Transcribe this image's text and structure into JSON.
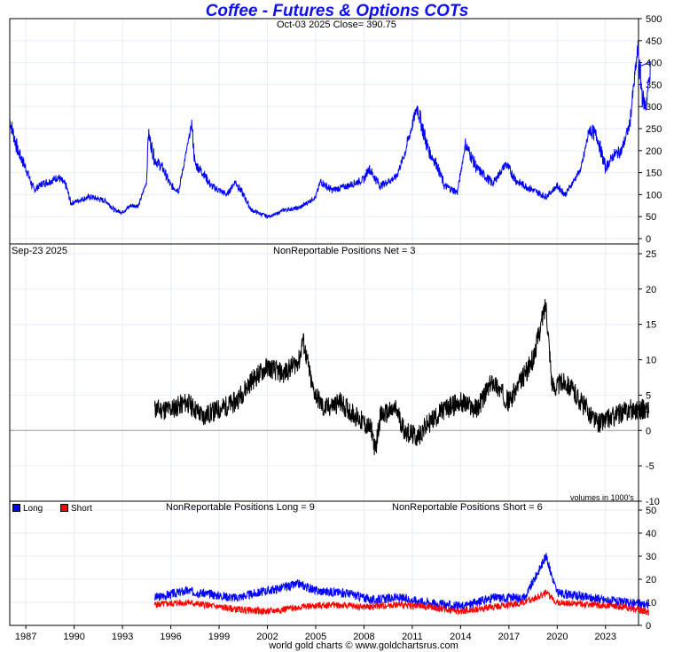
{
  "title": "Coffee - Futures & Options COTs",
  "footer": "world gold charts © www.goldchartsrus.com",
  "chart_data": [
    {
      "type": "line",
      "name": "price",
      "subtitle": "Oct-03  2025   Close= 390.75",
      "ylim": [
        0,
        500
      ],
      "yticks": [
        0,
        50,
        100,
        150,
        200,
        250,
        300,
        350,
        400,
        450,
        500
      ],
      "color": "#0000ff",
      "points": [
        [
          1986,
          270
        ],
        [
          1986.5,
          200
        ],
        [
          1987,
          160
        ],
        [
          1987.5,
          110
        ],
        [
          1988,
          125
        ],
        [
          1988.5,
          130
        ],
        [
          1989,
          140
        ],
        [
          1989.5,
          120
        ],
        [
          1989.8,
          80
        ],
        [
          1990.5,
          90
        ],
        [
          1991,
          95
        ],
        [
          1992,
          85
        ],
        [
          1992.5,
          65
        ],
        [
          1993,
          60
        ],
        [
          1993.5,
          75
        ],
        [
          1994,
          75
        ],
        [
          1994.5,
          130
        ],
        [
          1994.6,
          240
        ],
        [
          1995,
          180
        ],
        [
          1995.5,
          160
        ],
        [
          1996,
          120
        ],
        [
          1996.5,
          110
        ],
        [
          1997.3,
          260
        ],
        [
          1997.5,
          170
        ],
        [
          1998,
          150
        ],
        [
          1998.5,
          120
        ],
        [
          1999,
          110
        ],
        [
          1999.5,
          100
        ],
        [
          2000,
          130
        ],
        [
          2000.5,
          100
        ],
        [
          2001,
          65
        ],
        [
          2002,
          50
        ],
        [
          2002.5,
          55
        ],
        [
          2003,
          65
        ],
        [
          2004,
          70
        ],
        [
          2005,
          95
        ],
        [
          2005.3,
          130
        ],
        [
          2006,
          110
        ],
        [
          2007,
          120
        ],
        [
          2008,
          135
        ],
        [
          2008.3,
          160
        ],
        [
          2009,
          120
        ],
        [
          2010,
          140
        ],
        [
          2010.5,
          190
        ],
        [
          2011.3,
          300
        ],
        [
          2012,
          200
        ],
        [
          2012.5,
          170
        ],
        [
          2013,
          120
        ],
        [
          2013.8,
          105
        ],
        [
          2014.3,
          215
        ],
        [
          2015,
          160
        ],
        [
          2016,
          125
        ],
        [
          2016.8,
          170
        ],
        [
          2017.5,
          130
        ],
        [
          2018.5,
          110
        ],
        [
          2019.3,
          95
        ],
        [
          2020,
          120
        ],
        [
          2020.5,
          100
        ],
        [
          2021.5,
          160
        ],
        [
          2022,
          250
        ],
        [
          2022.5,
          230
        ],
        [
          2023,
          160
        ],
        [
          2023.5,
          190
        ],
        [
          2024,
          200
        ],
        [
          2024.5,
          260
        ],
        [
          2025,
          430
        ],
        [
          2025.3,
          320
        ],
        [
          2025.5,
          300
        ],
        [
          2025.8,
          390
        ]
      ]
    },
    {
      "type": "line",
      "name": "net",
      "date_label": "Sep-23  2025",
      "subtitle": "NonReportable Positions Net = 3",
      "note": "volumes in 1000's",
      "ylim": [
        -10,
        25
      ],
      "yticks": [
        -10,
        -5,
        0,
        5,
        10,
        15,
        20,
        25
      ],
      "color": "#000000",
      "points": [
        [
          1995,
          3
        ],
        [
          1996,
          3
        ],
        [
          1997,
          4
        ],
        [
          1998,
          2
        ],
        [
          1999,
          3
        ],
        [
          2000,
          4
        ],
        [
          2001,
          7
        ],
        [
          2002,
          9
        ],
        [
          2003,
          8
        ],
        [
          2004,
          10
        ],
        [
          2004.2,
          13
        ],
        [
          2004.8,
          6
        ],
        [
          2005.5,
          3
        ],
        [
          2006.5,
          4
        ],
        [
          2007.5,
          2
        ],
        [
          2008.5,
          0
        ],
        [
          2008.7,
          -3
        ],
        [
          2009,
          2
        ],
        [
          2010,
          3
        ],
        [
          2010.5,
          0
        ],
        [
          2011.3,
          -1
        ],
        [
          2012,
          1
        ],
        [
          2013,
          3
        ],
        [
          2014,
          4
        ],
        [
          2015,
          3
        ],
        [
          2016,
          7
        ],
        [
          2017,
          4
        ],
        [
          2018.5,
          10
        ],
        [
          2019.3,
          18
        ],
        [
          2019.7,
          6
        ],
        [
          2020.5,
          7
        ],
        [
          2021.5,
          4
        ],
        [
          2022.5,
          1
        ],
        [
          2023.5,
          2
        ],
        [
          2024.5,
          3
        ],
        [
          2025.7,
          3
        ]
      ]
    },
    {
      "type": "line",
      "name": "long-short",
      "subtitle_long": "NonReportable Positions Long = 9",
      "subtitle_short": "NonReportable Positions Short = 6",
      "ylim": [
        0,
        50
      ],
      "yticks": [
        0,
        10,
        20,
        30,
        40,
        50
      ],
      "series": [
        {
          "name": "Long",
          "color": "#0000ff",
          "points": [
            [
              1995,
              12
            ],
            [
              1997,
              15
            ],
            [
              2000,
              12
            ],
            [
              2002,
              15
            ],
            [
              2004,
              18
            ],
            [
              2005,
              15
            ],
            [
              2007,
              14
            ],
            [
              2008.5,
              11
            ],
            [
              2010,
              12
            ],
            [
              2012,
              10
            ],
            [
              2014,
              8
            ],
            [
              2016,
              12
            ],
            [
              2018,
              12
            ],
            [
              2019.3,
              30
            ],
            [
              2020,
              14
            ],
            [
              2022,
              12
            ],
            [
              2024,
              10
            ],
            [
              2025.7,
              9
            ]
          ]
        },
        {
          "name": "Short",
          "color": "#ff0000",
          "points": [
            [
              1995,
              9
            ],
            [
              1997,
              10
            ],
            [
              2000,
              7
            ],
            [
              2002,
              6
            ],
            [
              2004,
              8
            ],
            [
              2006,
              9
            ],
            [
              2008,
              8
            ],
            [
              2010,
              9
            ],
            [
              2012,
              8
            ],
            [
              2014,
              6
            ],
            [
              2016,
              8
            ],
            [
              2018,
              10
            ],
            [
              2019.3,
              14
            ],
            [
              2020,
              10
            ],
            [
              2022,
              9
            ],
            [
              2024,
              8
            ],
            [
              2025.7,
              6
            ]
          ]
        }
      ]
    },
    {
      "type": "axis",
      "xticks": [
        "1987",
        "1990",
        "1993",
        "1996",
        "1999",
        "2002",
        "2005",
        "2008",
        "2011",
        "2014",
        "2017",
        "2020",
        "2023"
      ],
      "xlim": [
        1986,
        2025.8
      ]
    }
  ]
}
